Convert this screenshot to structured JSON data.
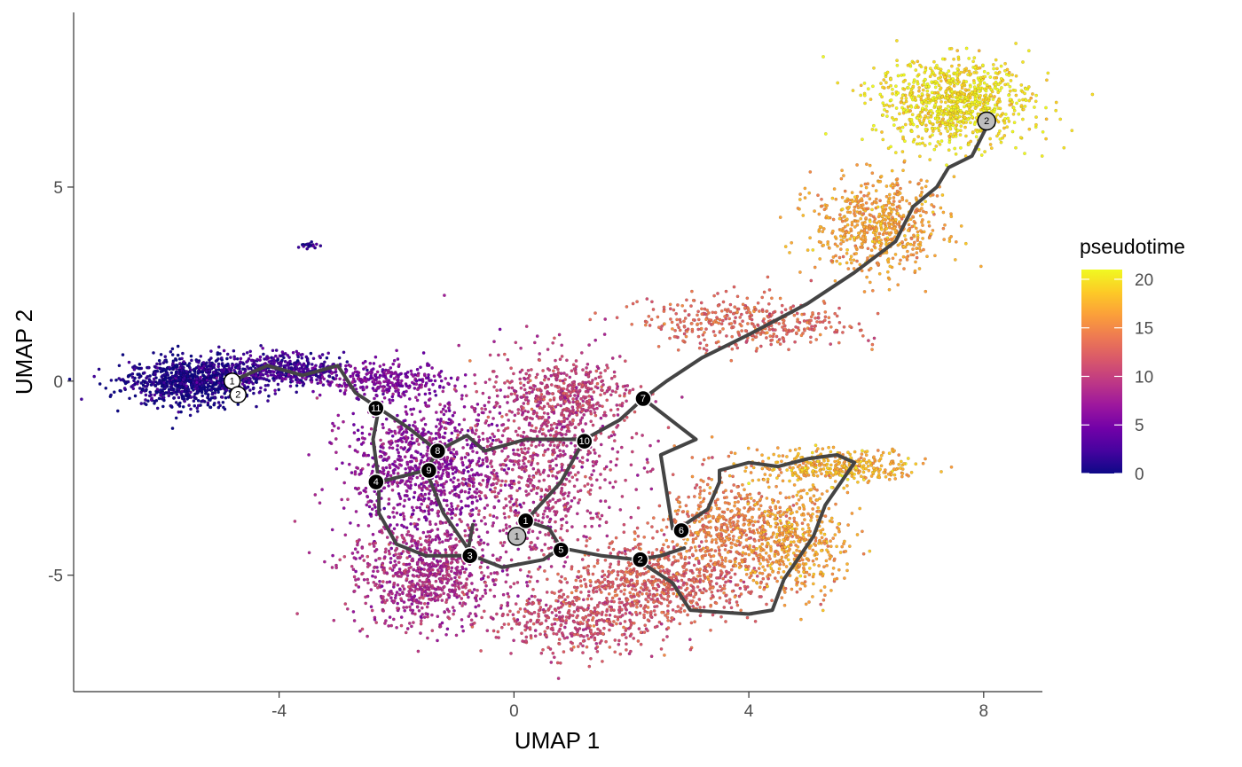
{
  "chart_data": {
    "type": "scatter",
    "title": "",
    "xlabel": "UMAP 1",
    "ylabel": "UMAP 2",
    "xlim": [
      -7.5,
      9.0
    ],
    "ylim": [
      -8.0,
      9.5
    ],
    "x_ticks": [
      -4,
      0,
      4,
      8
    ],
    "x_tick_labels": [
      "-4",
      "0",
      "4",
      "8"
    ],
    "y_ticks": [
      -5,
      0,
      5
    ],
    "y_tick_labels": [
      "-5",
      "0",
      "5"
    ],
    "grid": false,
    "legend": {
      "title": "pseudotime",
      "position": "right",
      "colormap": "plasma",
      "range": [
        0,
        21
      ],
      "ticks": [
        0,
        5,
        10,
        15,
        20
      ],
      "tick_labels": [
        "0",
        "5",
        "10",
        "15",
        "20"
      ]
    },
    "colormap_stops": [
      "#0d0887",
      "#46039f",
      "#7201a8",
      "#9c179e",
      "#bd3786",
      "#d8576b",
      "#ed7953",
      "#fb9f3a",
      "#fdca26",
      "#f0f921"
    ],
    "cell_regions": [
      {
        "cx": -5.5,
        "cy": 0.0,
        "rx": 1.0,
        "ry": 0.55,
        "n": 900,
        "pseudotime": 0.5
      },
      {
        "cx": -4.0,
        "cy": 0.3,
        "rx": 1.0,
        "ry": 0.4,
        "n": 450,
        "pseudotime": 2.5
      },
      {
        "cx": -2.2,
        "cy": 0.0,
        "rx": 1.0,
        "ry": 0.4,
        "n": 300,
        "pseudotime": 5.5
      },
      {
        "cx": -1.5,
        "cy": -2.2,
        "rx": 1.2,
        "ry": 1.5,
        "n": 900,
        "pseudotime": 6.5
      },
      {
        "cx": -1.5,
        "cy": -5.0,
        "rx": 1.2,
        "ry": 1.2,
        "n": 800,
        "pseudotime": 8.5
      },
      {
        "cx": 0.5,
        "cy": -2.0,
        "rx": 1.3,
        "ry": 2.4,
        "n": 900,
        "pseudotime": 9.5
      },
      {
        "cx": 1.0,
        "cy": -6.2,
        "rx": 1.3,
        "ry": 0.8,
        "n": 400,
        "pseudotime": 11.0
      },
      {
        "cx": 2.5,
        "cy": -5.2,
        "rx": 1.5,
        "ry": 1.0,
        "n": 700,
        "pseudotime": 12.5
      },
      {
        "cx": 3.6,
        "cy": -3.8,
        "rx": 1.0,
        "ry": 1.3,
        "n": 500,
        "pseudotime": 14.5
      },
      {
        "cx": 4.8,
        "cy": -4.2,
        "rx": 0.8,
        "ry": 1.2,
        "n": 450,
        "pseudotime": 16.5
      },
      {
        "cx": 5.5,
        "cy": -2.2,
        "rx": 1.3,
        "ry": 0.4,
        "n": 350,
        "pseudotime": 17.5
      },
      {
        "cx": 4.0,
        "cy": 1.5,
        "rx": 1.6,
        "ry": 0.6,
        "n": 400,
        "pseudotime": 13.0
      },
      {
        "cx": 6.2,
        "cy": 4.0,
        "rx": 1.0,
        "ry": 1.1,
        "n": 600,
        "pseudotime": 16.5
      },
      {
        "cx": 7.5,
        "cy": 7.2,
        "rx": 1.2,
        "ry": 1.0,
        "n": 900,
        "pseudotime": 20.0
      },
      {
        "cx": 1.0,
        "cy": -0.3,
        "rx": 1.0,
        "ry": 0.7,
        "n": 300,
        "pseudotime": 10.5
      },
      {
        "cx": -3.5,
        "cy": 3.5,
        "rx": 0.15,
        "ry": 0.1,
        "n": 20,
        "pseudotime": 1.0
      }
    ],
    "trajectory": [
      [
        [
          -4.8,
          0.0
        ],
        [
          -4.2,
          0.4
        ],
        [
          -3.6,
          0.15
        ],
        [
          -3.0,
          0.4
        ],
        [
          -2.7,
          -0.3
        ],
        [
          -2.3,
          -0.7
        ],
        [
          -1.8,
          -1.2
        ],
        [
          -1.3,
          -1.8
        ],
        [
          -0.8,
          -1.4
        ],
        [
          -0.5,
          -1.8
        ],
        [
          0.2,
          -1.5
        ],
        [
          1.2,
          -1.5
        ],
        [
          1.8,
          -1.0
        ],
        [
          2.2,
          -0.45
        ],
        [
          2.6,
          0.0
        ],
        [
          3.2,
          0.6
        ],
        [
          4.0,
          1.2
        ],
        [
          5.0,
          2.0
        ],
        [
          5.8,
          2.8
        ],
        [
          6.5,
          3.6
        ],
        [
          6.8,
          4.5
        ],
        [
          7.2,
          5.0
        ],
        [
          7.4,
          5.5
        ],
        [
          7.8,
          5.8
        ],
        [
          8.1,
          6.7
        ]
      ],
      [
        [
          -2.3,
          -0.7
        ],
        [
          -2.4,
          -1.5
        ],
        [
          -2.3,
          -2.6
        ],
        [
          -2.3,
          -3.4
        ],
        [
          -2.0,
          -4.2
        ],
        [
          -1.5,
          -4.5
        ],
        [
          -0.8,
          -4.5
        ],
        [
          -0.7,
          -3.7
        ]
      ],
      [
        [
          -2.3,
          -2.6
        ],
        [
          -1.5,
          -2.3
        ],
        [
          -1.3,
          -1.8
        ]
      ],
      [
        [
          -1.5,
          -2.3
        ],
        [
          -1.2,
          -3.4
        ],
        [
          -0.7,
          -4.5
        ],
        [
          -0.2,
          -4.8
        ],
        [
          0.5,
          -4.6
        ],
        [
          0.8,
          -4.3
        ],
        [
          1.5,
          -4.5
        ],
        [
          2.1,
          -4.6
        ],
        [
          2.5,
          -4.5
        ],
        [
          2.9,
          -4.3
        ]
      ],
      [
        [
          0.2,
          -3.6
        ],
        [
          0.6,
          -3.8
        ],
        [
          0.8,
          -4.3
        ]
      ],
      [
        [
          0.1,
          -4.0
        ],
        [
          0.2,
          -3.6
        ]
      ],
      [
        [
          0.2,
          -3.6
        ],
        [
          0.8,
          -2.6
        ],
        [
          1.2,
          -1.5
        ]
      ],
      [
        [
          2.2,
          -0.45
        ],
        [
          3.1,
          -1.5
        ],
        [
          2.5,
          -1.9
        ],
        [
          2.7,
          -3.8
        ]
      ],
      [
        [
          2.1,
          -4.6
        ],
        [
          2.7,
          -5.2
        ],
        [
          3.0,
          -5.9
        ],
        [
          4.0,
          -6.0
        ],
        [
          4.4,
          -5.9
        ],
        [
          4.6,
          -5.1
        ],
        [
          5.1,
          -4.0
        ],
        [
          5.3,
          -3.2
        ],
        [
          5.8,
          -2.1
        ],
        [
          5.5,
          -1.9
        ],
        [
          5.0,
          -2.0
        ],
        [
          4.5,
          -2.2
        ],
        [
          4.0,
          -2.1
        ],
        [
          3.5,
          -2.3
        ],
        [
          3.5,
          -2.6
        ],
        [
          3.3,
          -3.3
        ],
        [
          2.8,
          -3.8
        ]
      ]
    ],
    "nodes": [
      {
        "label": "1",
        "x": -4.8,
        "y": 0.0,
        "kind": "root"
      },
      {
        "label": "2",
        "x": -4.7,
        "y": -0.35,
        "kind": "root"
      },
      {
        "label": "1",
        "x": 0.05,
        "y": -4.0,
        "kind": "leaf"
      },
      {
        "label": "2",
        "x": 8.05,
        "y": 6.7,
        "kind": "leaf"
      },
      {
        "label": "1",
        "x": 0.2,
        "y": -3.6,
        "kind": "branch"
      },
      {
        "label": "2",
        "x": 2.15,
        "y": -4.6,
        "kind": "branch"
      },
      {
        "label": "3",
        "x": -0.75,
        "y": -4.5,
        "kind": "branch"
      },
      {
        "label": "4",
        "x": -2.35,
        "y": -2.6,
        "kind": "branch"
      },
      {
        "label": "5",
        "x": 0.8,
        "y": -4.35,
        "kind": "branch"
      },
      {
        "label": "6",
        "x": 2.85,
        "y": -3.85,
        "kind": "branch"
      },
      {
        "label": "7",
        "x": 2.2,
        "y": -0.45,
        "kind": "branch"
      },
      {
        "label": "8",
        "x": -1.3,
        "y": -1.8,
        "kind": "branch"
      },
      {
        "label": "9",
        "x": -1.45,
        "y": -2.3,
        "kind": "branch"
      },
      {
        "label": "10",
        "x": 1.2,
        "y": -1.55,
        "kind": "branch"
      },
      {
        "label": "11",
        "x": -2.35,
        "y": -0.7,
        "kind": "branch"
      }
    ]
  }
}
